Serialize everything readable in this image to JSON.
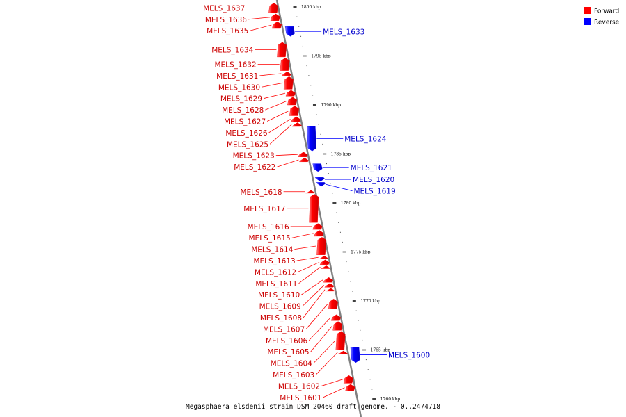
{
  "caption": "Megasphaera elsdenii strain DSM 20460 draft genome. - 0..2474718",
  "legend": [
    {
      "label": "Forward",
      "color": "#ff0000"
    },
    {
      "label": "Reverse",
      "color": "#0000ff"
    }
  ],
  "colors": {
    "forward": "#ff0000",
    "reverse": "#0000ff",
    "backbone": "#808080",
    "forward_label": "#cc0000",
    "reverse_label": "#0000cc"
  },
  "chart_data": {
    "type": "linear-genome-map",
    "axis_unit": "kbp",
    "axis_range_kbp": [
      1759,
      1801
    ],
    "ticks": [
      {
        "kbp": 1800,
        "label": "1800 kbp"
      },
      {
        "kbp": 1795,
        "label": "1795 kbp"
      },
      {
        "kbp": 1790,
        "label": "1790 kbp"
      },
      {
        "kbp": 1785,
        "label": "1785 kbp"
      },
      {
        "kbp": 1780,
        "label": "1780 kbp"
      },
      {
        "kbp": 1775,
        "label": "1775 kbp"
      },
      {
        "kbp": 1770,
        "label": "1770 kbp"
      },
      {
        "kbp": 1765,
        "label": "1765 kbp"
      },
      {
        "kbp": 1760,
        "label": "1760 kbp"
      }
    ],
    "genes": [
      {
        "name": "MELS_1637",
        "strand": "forward",
        "start_kbp": 1800.4,
        "end_kbp": 1799.4
      },
      {
        "name": "MELS_1636",
        "strand": "forward",
        "start_kbp": 1799.3,
        "end_kbp": 1798.6
      },
      {
        "name": "MELS_1635",
        "strand": "forward",
        "start_kbp": 1798.5,
        "end_kbp": 1797.8
      },
      {
        "name": "MELS_1633",
        "strand": "reverse",
        "start_kbp": 1798.0,
        "end_kbp": 1797.0
      },
      {
        "name": "MELS_1634",
        "strand": "forward",
        "start_kbp": 1796.4,
        "end_kbp": 1794.9
      },
      {
        "name": "MELS_1632",
        "strand": "forward",
        "start_kbp": 1794.8,
        "end_kbp": 1793.5
      },
      {
        "name": "MELS_1631",
        "strand": "forward",
        "start_kbp": 1793.4,
        "end_kbp": 1793.0
      },
      {
        "name": "MELS_1630",
        "strand": "forward",
        "start_kbp": 1792.9,
        "end_kbp": 1791.6
      },
      {
        "name": "MELS_1629",
        "strand": "forward",
        "start_kbp": 1791.5,
        "end_kbp": 1790.9
      },
      {
        "name": "MELS_1628",
        "strand": "forward",
        "start_kbp": 1790.8,
        "end_kbp": 1790.0
      },
      {
        "name": "MELS_1627",
        "strand": "forward",
        "start_kbp": 1789.9,
        "end_kbp": 1788.9
      },
      {
        "name": "MELS_1626",
        "strand": "forward",
        "start_kbp": 1788.8,
        "end_kbp": 1788.3
      },
      {
        "name": "MELS_1625",
        "strand": "forward",
        "start_kbp": 1788.2,
        "end_kbp": 1787.8
      },
      {
        "name": "MELS_1624",
        "strand": "reverse",
        "start_kbp": 1787.8,
        "end_kbp": 1785.3
      },
      {
        "name": "MELS_1623",
        "strand": "forward",
        "start_kbp": 1785.2,
        "end_kbp": 1784.7
      },
      {
        "name": "MELS_1622",
        "strand": "forward",
        "start_kbp": 1784.6,
        "end_kbp": 1784.2
      },
      {
        "name": "MELS_1621",
        "strand": "reverse",
        "start_kbp": 1784.0,
        "end_kbp": 1783.2
      },
      {
        "name": "MELS_1620",
        "strand": "reverse",
        "start_kbp": 1782.6,
        "end_kbp": 1782.2
      },
      {
        "name": "MELS_1619",
        "strand": "reverse",
        "start_kbp": 1782.1,
        "end_kbp": 1781.7
      },
      {
        "name": "MELS_1618",
        "strand": "forward",
        "start_kbp": 1781.3,
        "end_kbp": 1781.0
      },
      {
        "name": "MELS_1617",
        "strand": "forward",
        "start_kbp": 1780.9,
        "end_kbp": 1778.0
      },
      {
        "name": "MELS_1616",
        "strand": "forward",
        "start_kbp": 1777.9,
        "end_kbp": 1777.3
      },
      {
        "name": "MELS_1615",
        "strand": "forward",
        "start_kbp": 1777.2,
        "end_kbp": 1776.6
      },
      {
        "name": "MELS_1614",
        "strand": "forward",
        "start_kbp": 1776.5,
        "end_kbp": 1774.7
      },
      {
        "name": "MELS_1613",
        "strand": "forward",
        "start_kbp": 1774.6,
        "end_kbp": 1774.3
      },
      {
        "name": "MELS_1612",
        "strand": "forward",
        "start_kbp": 1774.2,
        "end_kbp": 1773.7
      },
      {
        "name": "MELS_1611",
        "strand": "forward",
        "start_kbp": 1773.6,
        "end_kbp": 1773.3
      },
      {
        "name": "MELS_1610",
        "strand": "forward",
        "start_kbp": 1772.4,
        "end_kbp": 1771.9
      },
      {
        "name": "MELS_1609",
        "strand": "forward",
        "start_kbp": 1771.8,
        "end_kbp": 1771.4
      },
      {
        "name": "MELS_1608",
        "strand": "forward",
        "start_kbp": 1771.3,
        "end_kbp": 1771.0
      },
      {
        "name": "MELS_1607",
        "strand": "forward",
        "start_kbp": 1770.2,
        "end_kbp": 1769.2
      },
      {
        "name": "MELS_1606",
        "strand": "forward",
        "start_kbp": 1768.6,
        "end_kbp": 1768.0
      },
      {
        "name": "MELS_1605",
        "strand": "forward",
        "start_kbp": 1767.9,
        "end_kbp": 1767.0
      },
      {
        "name": "MELS_1604",
        "strand": "forward",
        "start_kbp": 1766.9,
        "end_kbp": 1765.0
      },
      {
        "name": "MELS_1603",
        "strand": "forward",
        "start_kbp": 1764.9,
        "end_kbp": 1764.6
      },
      {
        "name": "MELS_1600",
        "strand": "reverse",
        "start_kbp": 1765.3,
        "end_kbp": 1763.7
      },
      {
        "name": "MELS_1602",
        "strand": "forward",
        "start_kbp": 1762.4,
        "end_kbp": 1761.6
      },
      {
        "name": "MELS_1601",
        "strand": "forward",
        "start_kbp": 1761.5,
        "end_kbp": 1760.8
      }
    ]
  }
}
